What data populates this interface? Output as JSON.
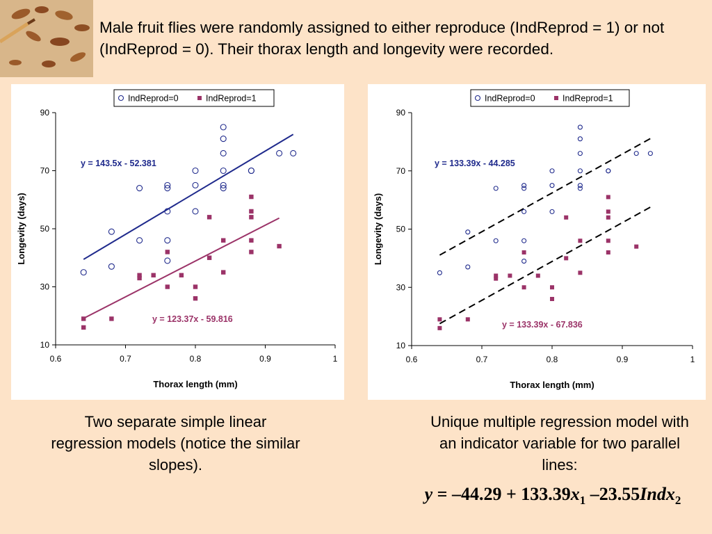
{
  "intro": "Male fruit flies were randomly assigned to either reproduce (IndReprod = 1) or not (IndReprod = 0). Their thorax length and longevity were recorded.",
  "chart_data": [
    {
      "type": "scatter",
      "xlabel": "Thorax length (mm)",
      "ylabel": "Longevity (days)",
      "xlim": [
        0.6,
        1.0
      ],
      "ylim": [
        10,
        90
      ],
      "xticks": [
        "0.6",
        "0.7",
        "0.8",
        "0.9",
        "1"
      ],
      "yticks": [
        "10",
        "30",
        "50",
        "70",
        "90"
      ],
      "legend_position": "top-center",
      "grid": false,
      "series": [
        {
          "name": "IndReprod=0",
          "marker": "open-circle",
          "color": "#1f2a8c",
          "points": [
            [
              0.64,
              35
            ],
            [
              0.68,
              49
            ],
            [
              0.68,
              37
            ],
            [
              0.72,
              64
            ],
            [
              0.72,
              46
            ],
            [
              0.76,
              65
            ],
            [
              0.76,
              64
            ],
            [
              0.76,
              56
            ],
            [
              0.76,
              46
            ],
            [
              0.76,
              39
            ],
            [
              0.8,
              70
            ],
            [
              0.8,
              65
            ],
            [
              0.8,
              56
            ],
            [
              0.84,
              85
            ],
            [
              0.84,
              81
            ],
            [
              0.84,
              76
            ],
            [
              0.84,
              70
            ],
            [
              0.84,
              65
            ],
            [
              0.84,
              64
            ],
            [
              0.88,
              70
            ],
            [
              0.88,
              70
            ],
            [
              0.92,
              76
            ],
            [
              0.94,
              76
            ]
          ]
        },
        {
          "name": "IndReprod=1",
          "marker": "filled-square",
          "color": "#9b3368",
          "points": [
            [
              0.64,
              19
            ],
            [
              0.64,
              16
            ],
            [
              0.68,
              19
            ],
            [
              0.72,
              34
            ],
            [
              0.72,
              33
            ],
            [
              0.74,
              34
            ],
            [
              0.76,
              42
            ],
            [
              0.76,
              30
            ],
            [
              0.78,
              34
            ],
            [
              0.8,
              30
            ],
            [
              0.8,
              26
            ],
            [
              0.82,
              54
            ],
            [
              0.82,
              40
            ],
            [
              0.84,
              46
            ],
            [
              0.84,
              35
            ],
            [
              0.88,
              61
            ],
            [
              0.88,
              56
            ],
            [
              0.88,
              54
            ],
            [
              0.88,
              46
            ],
            [
              0.88,
              42
            ],
            [
              0.92,
              44
            ]
          ]
        }
      ],
      "fits": [
        {
          "label": "y = 143.5x - 52.381",
          "slope": 143.5,
          "intercept": -52.381,
          "x_range": [
            0.64,
            0.94
          ],
          "color": "#1f2a8c",
          "style": "solid"
        },
        {
          "label": "y = 123.37x - 59.816",
          "slope": 123.37,
          "intercept": -59.816,
          "x_range": [
            0.64,
            0.92
          ],
          "color": "#9b3368",
          "style": "solid"
        }
      ]
    },
    {
      "type": "scatter",
      "xlabel": "Thorax length (mm)",
      "ylabel": "Longevity (days)",
      "xlim": [
        0.6,
        1.0
      ],
      "ylim": [
        10,
        90
      ],
      "xticks": [
        "0.6",
        "0.7",
        "0.8",
        "0.9",
        "1"
      ],
      "yticks": [
        "10",
        "30",
        "50",
        "70",
        "90"
      ],
      "legend_position": "top-center",
      "grid": false,
      "series": [
        {
          "name": "IndReprod=0",
          "marker": "open-circle",
          "color": "#1f2a8c",
          "points": [
            [
              0.64,
              35
            ],
            [
              0.68,
              49
            ],
            [
              0.68,
              37
            ],
            [
              0.72,
              64
            ],
            [
              0.72,
              46
            ],
            [
              0.76,
              65
            ],
            [
              0.76,
              64
            ],
            [
              0.76,
              56
            ],
            [
              0.76,
              46
            ],
            [
              0.76,
              39
            ],
            [
              0.8,
              70
            ],
            [
              0.8,
              65
            ],
            [
              0.8,
              56
            ],
            [
              0.84,
              85
            ],
            [
              0.84,
              81
            ],
            [
              0.84,
              76
            ],
            [
              0.84,
              70
            ],
            [
              0.84,
              65
            ],
            [
              0.84,
              64
            ],
            [
              0.88,
              70
            ],
            [
              0.88,
              70
            ],
            [
              0.92,
              76
            ],
            [
              0.94,
              76
            ]
          ]
        },
        {
          "name": "IndReprod=1",
          "marker": "filled-square",
          "color": "#9b3368",
          "points": [
            [
              0.64,
              19
            ],
            [
              0.64,
              16
            ],
            [
              0.68,
              19
            ],
            [
              0.72,
              34
            ],
            [
              0.72,
              33
            ],
            [
              0.74,
              34
            ],
            [
              0.76,
              42
            ],
            [
              0.76,
              30
            ],
            [
              0.78,
              34
            ],
            [
              0.8,
              30
            ],
            [
              0.8,
              26
            ],
            [
              0.82,
              54
            ],
            [
              0.82,
              40
            ],
            [
              0.84,
              46
            ],
            [
              0.84,
              35
            ],
            [
              0.88,
              61
            ],
            [
              0.88,
              56
            ],
            [
              0.88,
              54
            ],
            [
              0.88,
              46
            ],
            [
              0.88,
              42
            ],
            [
              0.92,
              44
            ]
          ]
        }
      ],
      "fits": [
        {
          "label": "y = 133.39x - 44.285",
          "slope": 133.39,
          "intercept": -44.285,
          "x_range": [
            0.64,
            0.94
          ],
          "color": "#1f2a8c",
          "style": "dashed"
        },
        {
          "label": "y = 133.39x - 67.836",
          "slope": 133.39,
          "intercept": -67.836,
          "x_range": [
            0.64,
            0.94
          ],
          "color": "#9b3368",
          "style": "dashed"
        }
      ]
    }
  ],
  "caption_left": "Two separate simple linear regression models (notice the similar slopes).",
  "caption_right": "Unique multiple regression model with an indicator variable for two parallel lines:",
  "equation": {
    "y": "y",
    "equals_intercept": " = –44.29 + 133.39",
    "x1_var": "x",
    "x1_sub": "1",
    "minus_coef": " –23.55",
    "ind_var": "Indx",
    "ind_sub": "2"
  }
}
